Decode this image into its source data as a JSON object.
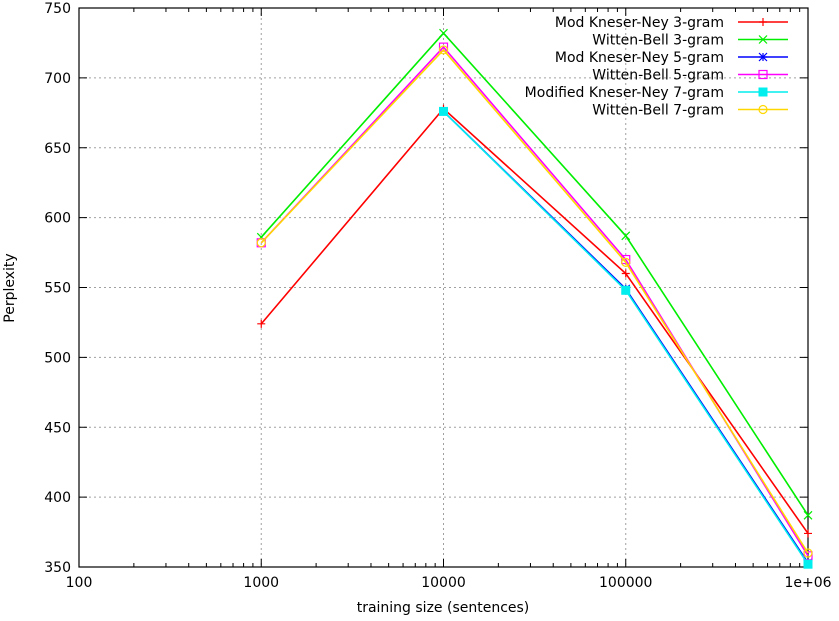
{
  "chart_data": {
    "type": "line",
    "xlabel": "training size (sentences)",
    "ylabel": "Perplexity",
    "x_scale": "log",
    "xlim": [
      100,
      1000000
    ],
    "ylim": [
      350,
      750
    ],
    "x_ticks": [
      100,
      1000,
      10000,
      100000,
      1000000
    ],
    "x_tick_labels": [
      "100",
      "1000",
      "10000",
      "100000",
      "1e+06"
    ],
    "y_ticks": [
      350,
      400,
      450,
      500,
      550,
      600,
      650,
      700,
      750
    ],
    "y_tick_labels": [
      "350",
      "400",
      "450",
      "500",
      "550",
      "600",
      "650",
      "700",
      "750"
    ],
    "grid": true,
    "legend_position": "top-right",
    "x": [
      1000,
      10000,
      100000,
      1000000
    ],
    "series": [
      {
        "name": "Mod Kneser-Ney 3-gram",
        "color": "#ff0000",
        "marker": "plus",
        "values": [
          524,
          678,
          560,
          374
        ]
      },
      {
        "name": "Witten-Bell 3-gram",
        "color": "#00ee00",
        "marker": "cross",
        "values": [
          586,
          732,
          587,
          387
        ]
      },
      {
        "name": "Mod Kneser-Ney 5-gram",
        "color": "#0000ff",
        "marker": "star",
        "values": [
          null,
          676,
          549,
          353
        ]
      },
      {
        "name": "Witten-Bell 5-gram",
        "color": "#ff00ff",
        "marker": "open-square",
        "values": [
          582,
          722,
          570,
          358
        ]
      },
      {
        "name": "Modified Kneser-Ney 7-gram",
        "color": "#00eeee",
        "marker": "filled-square",
        "values": [
          null,
          676,
          548,
          352
        ]
      },
      {
        "name": "Witten-Bell 7-gram",
        "color": "#ffd700",
        "marker": "open-circle",
        "values": [
          582,
          720,
          568,
          360
        ]
      }
    ]
  }
}
